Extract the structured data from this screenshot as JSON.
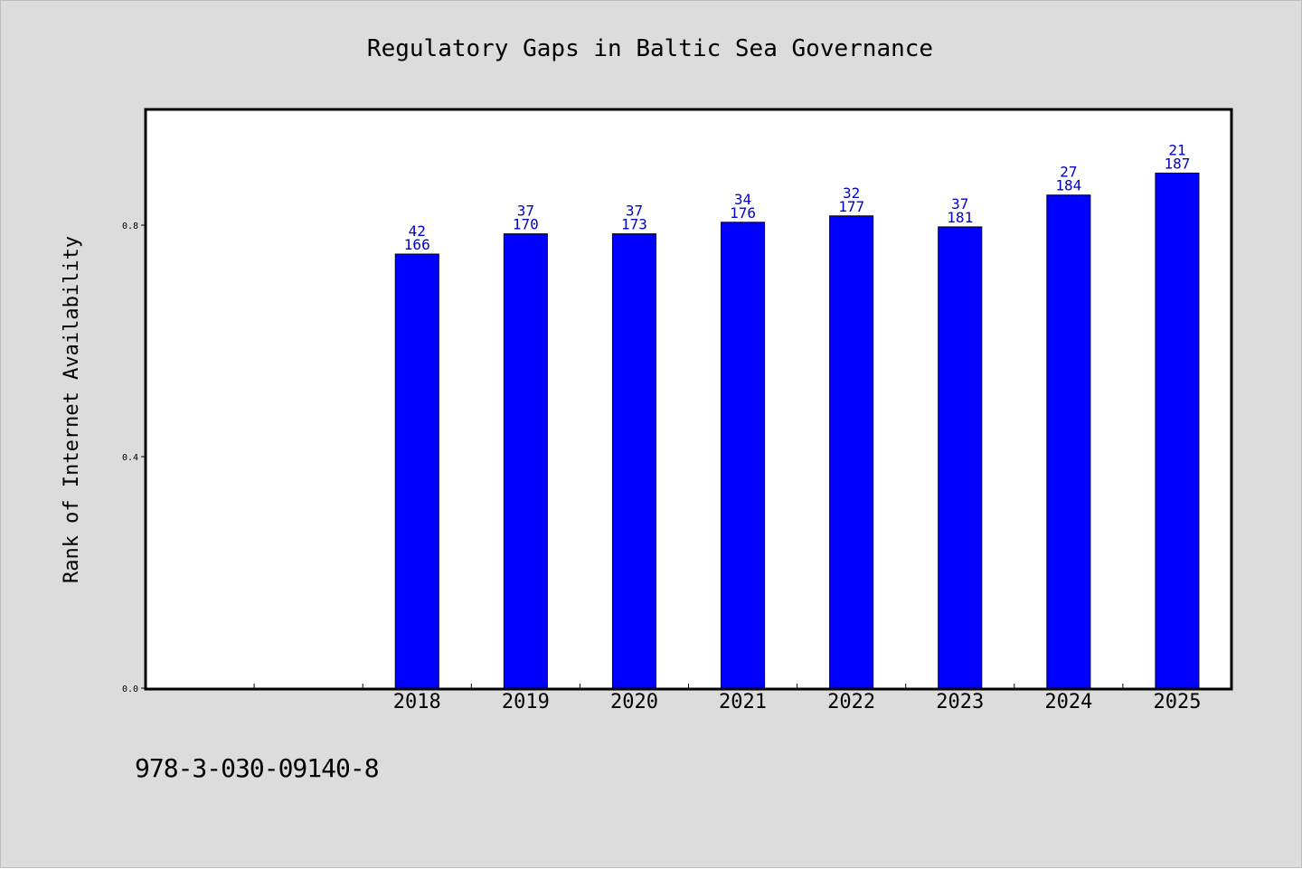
{
  "chart_data": {
    "type": "bar",
    "title": "Regulatory Gaps in Baltic Sea Governance",
    "xlabel": "",
    "ylabel": "Rank of Internet Availability",
    "categories": [
      "2018",
      "2019",
      "2020",
      "2021",
      "2022",
      "2023",
      "2024",
      "2025"
    ],
    "values": [
      0.75,
      0.785,
      0.785,
      0.805,
      0.816,
      0.797,
      0.852,
      0.89
    ],
    "label_top": [
      "42",
      "37",
      "37",
      "34",
      "32",
      "37",
      "27",
      "21"
    ],
    "label_bottom": [
      "166",
      "170",
      "173",
      "176",
      "177",
      "181",
      "184",
      "187"
    ],
    "ylim": [
      0,
      1.0
    ],
    "yticks": [
      0.0,
      0.4,
      0.8
    ],
    "ytick_labels": [
      "0.0",
      "0.4",
      "0.8"
    ],
    "leading_empty_slots": 2,
    "grid": false,
    "legend": "none",
    "colors": {
      "bar": "#0000ff",
      "bar_edge": "#000000",
      "label": "#0000cc",
      "background": "#dcdcdc",
      "plot_background": "#ffffff"
    }
  },
  "footer": {
    "isbn": "978-3-030-09140-8"
  }
}
